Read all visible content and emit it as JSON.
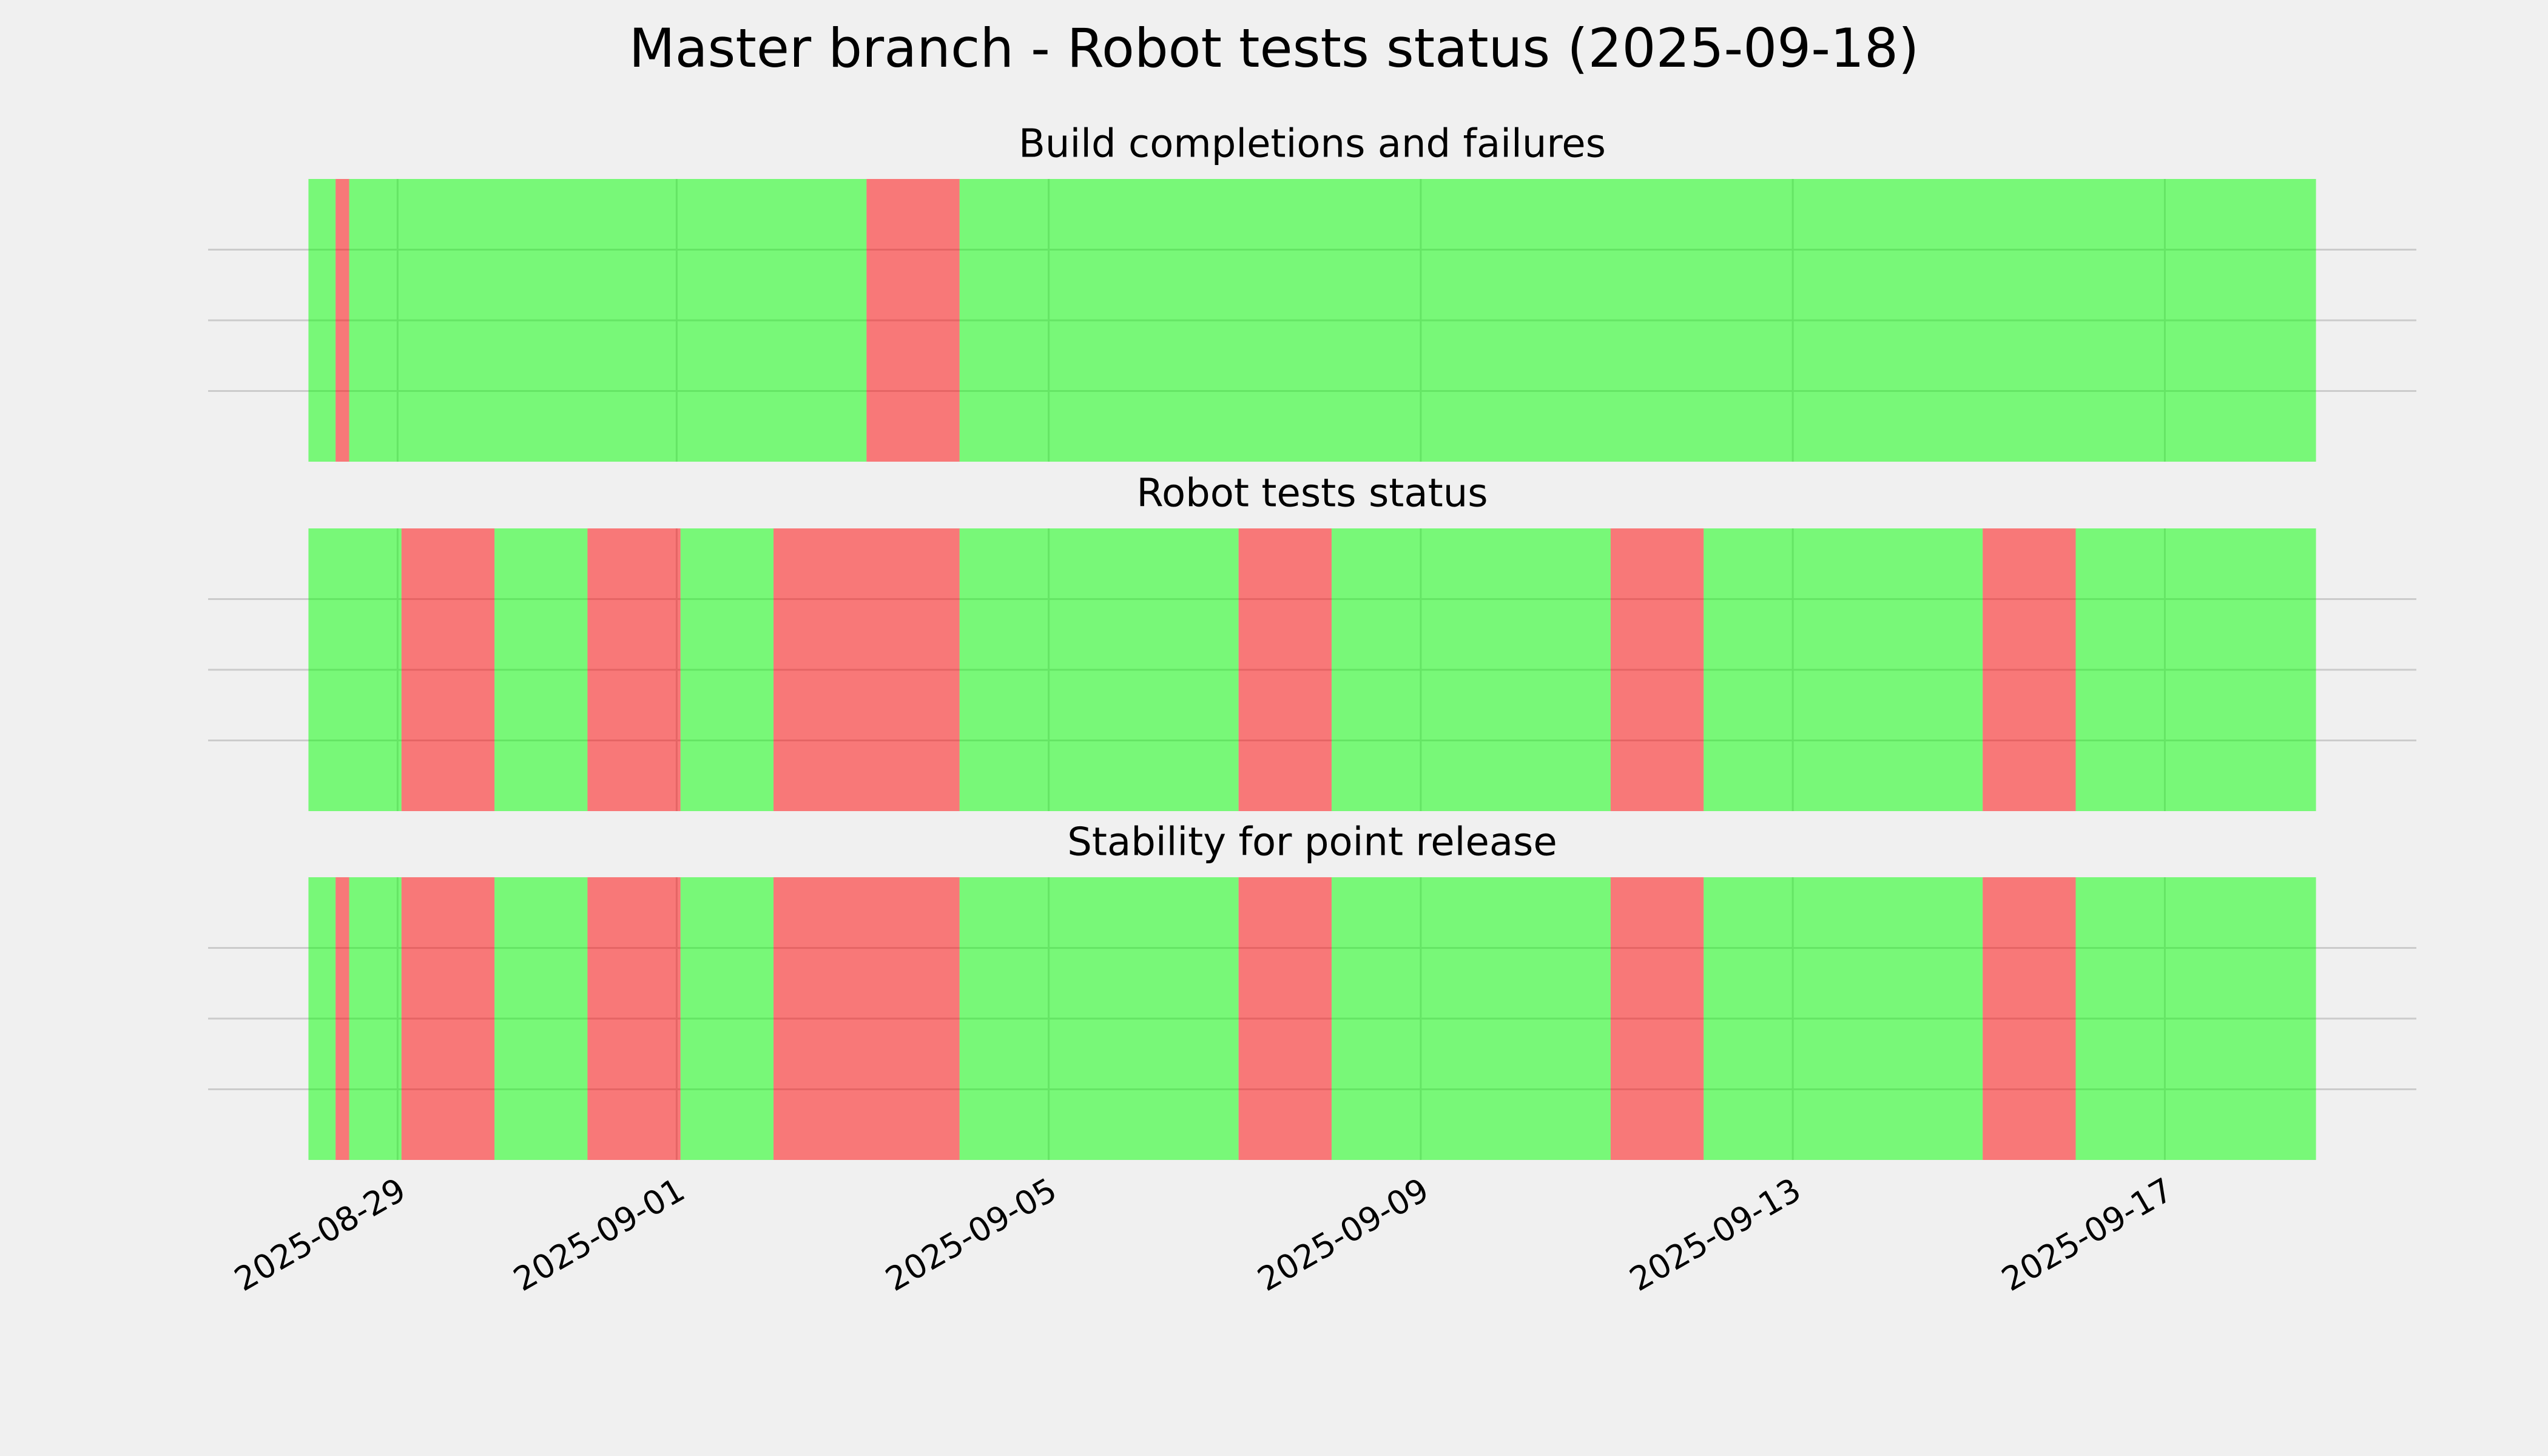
{
  "title": "Master branch - Robot tests status (2025-09-18)",
  "chart_data": [
    {
      "type": "timeline",
      "title": "Build completions and failures",
      "alpha": 0.5,
      "ylim": [
        0,
        1
      ],
      "yticks": [
        0.25,
        0.5,
        0.75
      ],
      "grid": true,
      "spans": [
        {
          "start": "2025-08-28T01:00",
          "end": "2025-08-28T08:00",
          "color": "#00ff00"
        },
        {
          "start": "2025-08-28T08:00",
          "end": "2025-08-28T11:30",
          "color": "#ff0000"
        },
        {
          "start": "2025-08-28T11:30",
          "end": "2025-09-03T01:00",
          "color": "#00ff00"
        },
        {
          "start": "2025-09-03T01:00",
          "end": "2025-09-04T01:00",
          "color": "#ff0000"
        },
        {
          "start": "2025-09-04T01:00",
          "end": "2025-09-18T15:00",
          "color": "#00ff00"
        }
      ]
    },
    {
      "type": "timeline",
      "title": "Robot tests status",
      "alpha": 0.5,
      "ylim": [
        0,
        1
      ],
      "yticks": [
        0.25,
        0.5,
        0.75
      ],
      "grid": true,
      "spans": [
        {
          "start": "2025-08-28T01:00",
          "end": "2025-08-29T01:00",
          "color": "#00ff00"
        },
        {
          "start": "2025-08-29T01:00",
          "end": "2025-08-30T01:00",
          "color": "#ff0000"
        },
        {
          "start": "2025-08-30T01:00",
          "end": "2025-08-31T01:00",
          "color": "#00ff00"
        },
        {
          "start": "2025-08-31T01:00",
          "end": "2025-09-01T01:00",
          "color": "#ff0000"
        },
        {
          "start": "2025-09-01T01:00",
          "end": "2025-09-02T01:00",
          "color": "#00ff00"
        },
        {
          "start": "2025-09-02T01:00",
          "end": "2025-09-04T01:00",
          "color": "#ff0000"
        },
        {
          "start": "2025-09-04T01:00",
          "end": "2025-09-07T01:00",
          "color": "#00ff00"
        },
        {
          "start": "2025-09-07T01:00",
          "end": "2025-09-08T01:00",
          "color": "#ff0000"
        },
        {
          "start": "2025-09-08T01:00",
          "end": "2025-09-11T01:00",
          "color": "#00ff00"
        },
        {
          "start": "2025-09-11T01:00",
          "end": "2025-09-12T01:00",
          "color": "#ff0000"
        },
        {
          "start": "2025-09-12T01:00",
          "end": "2025-09-15T01:00",
          "color": "#00ff00"
        },
        {
          "start": "2025-09-15T01:00",
          "end": "2025-09-16T01:00",
          "color": "#ff0000"
        },
        {
          "start": "2025-09-16T01:00",
          "end": "2025-09-18T15:00",
          "color": "#00ff00"
        }
      ]
    },
    {
      "type": "timeline",
      "title": "Stability for point release",
      "alpha": 0.5,
      "ylim": [
        0,
        1
      ],
      "yticks": [
        0.25,
        0.5,
        0.75
      ],
      "grid": true,
      "xlim": [
        "2025-08-26T23:06",
        "2025-09-19T16:54"
      ],
      "xticks": [
        "2025-08-29",
        "2025-09-01",
        "2025-09-05",
        "2025-09-09",
        "2025-09-13",
        "2025-09-17"
      ],
      "spans": [
        {
          "start": "2025-08-28T01:00",
          "end": "2025-08-28T08:00",
          "color": "#00ff00"
        },
        {
          "start": "2025-08-28T08:00",
          "end": "2025-08-28T11:30",
          "color": "#ff0000"
        },
        {
          "start": "2025-08-28T11:30",
          "end": "2025-08-29T01:00",
          "color": "#00ff00"
        },
        {
          "start": "2025-08-29T01:00",
          "end": "2025-08-30T01:00",
          "color": "#ff0000"
        },
        {
          "start": "2025-08-30T01:00",
          "end": "2025-08-31T01:00",
          "color": "#00ff00"
        },
        {
          "start": "2025-08-31T01:00",
          "end": "2025-09-01T01:00",
          "color": "#ff0000"
        },
        {
          "start": "2025-09-01T01:00",
          "end": "2025-09-02T01:00",
          "color": "#00ff00"
        },
        {
          "start": "2025-09-02T01:00",
          "end": "2025-09-04T01:00",
          "color": "#ff0000"
        },
        {
          "start": "2025-09-04T01:00",
          "end": "2025-09-07T01:00",
          "color": "#00ff00"
        },
        {
          "start": "2025-09-07T01:00",
          "end": "2025-09-08T01:00",
          "color": "#ff0000"
        },
        {
          "start": "2025-09-08T01:00",
          "end": "2025-09-11T01:00",
          "color": "#00ff00"
        },
        {
          "start": "2025-09-11T01:00",
          "end": "2025-09-12T01:00",
          "color": "#ff0000"
        },
        {
          "start": "2025-09-12T01:00",
          "end": "2025-09-15T01:00",
          "color": "#00ff00"
        },
        {
          "start": "2025-09-15T01:00",
          "end": "2025-09-16T01:00",
          "color": "#ff0000"
        },
        {
          "start": "2025-09-16T01:00",
          "end": "2025-09-18T15:00",
          "color": "#00ff00"
        }
      ]
    }
  ]
}
